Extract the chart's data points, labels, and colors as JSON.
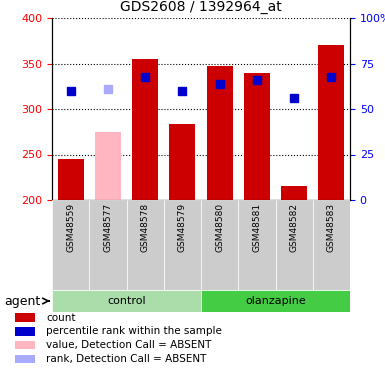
{
  "title": "GDS2608 / 1392964_at",
  "samples": [
    "GSM48559",
    "GSM48577",
    "GSM48578",
    "GSM48579",
    "GSM48580",
    "GSM48581",
    "GSM48582",
    "GSM48583"
  ],
  "groups": [
    "control",
    "control",
    "control",
    "control",
    "olanzapine",
    "olanzapine",
    "olanzapine",
    "olanzapine"
  ],
  "bar_values": [
    245,
    275,
    355,
    283,
    347,
    340,
    215,
    370
  ],
  "bar_colors": [
    "#cc0000",
    "#ffb6c1",
    "#cc0000",
    "#cc0000",
    "#cc0000",
    "#cc0000",
    "#cc0000",
    "#cc0000"
  ],
  "rank_values": [
    320,
    322,
    335,
    320,
    328,
    332,
    312,
    335
  ],
  "rank_colors": [
    "#0000cc",
    "#aaaaff",
    "#0000cc",
    "#0000cc",
    "#0000cc",
    "#0000cc",
    "#0000cc",
    "#0000cc"
  ],
  "ylim_left": [
    200,
    400
  ],
  "ylim_right": [
    0,
    100
  ],
  "yticks_left": [
    200,
    250,
    300,
    350,
    400
  ],
  "yticks_right": [
    0,
    25,
    50,
    75,
    100
  ],
  "group_colors": {
    "control": "#aaddaa",
    "olanzapine": "#44cc44"
  },
  "agent_label": "agent",
  "legend_items": [
    {
      "label": "count",
      "color": "#cc0000"
    },
    {
      "label": "percentile rank within the sample",
      "color": "#0000cc"
    },
    {
      "label": "value, Detection Call = ABSENT",
      "color": "#ffb6c1"
    },
    {
      "label": "rank, Detection Call = ABSENT",
      "color": "#aaaaff"
    }
  ],
  "bar_width": 0.7,
  "marker_size": 6,
  "baseline": 200
}
